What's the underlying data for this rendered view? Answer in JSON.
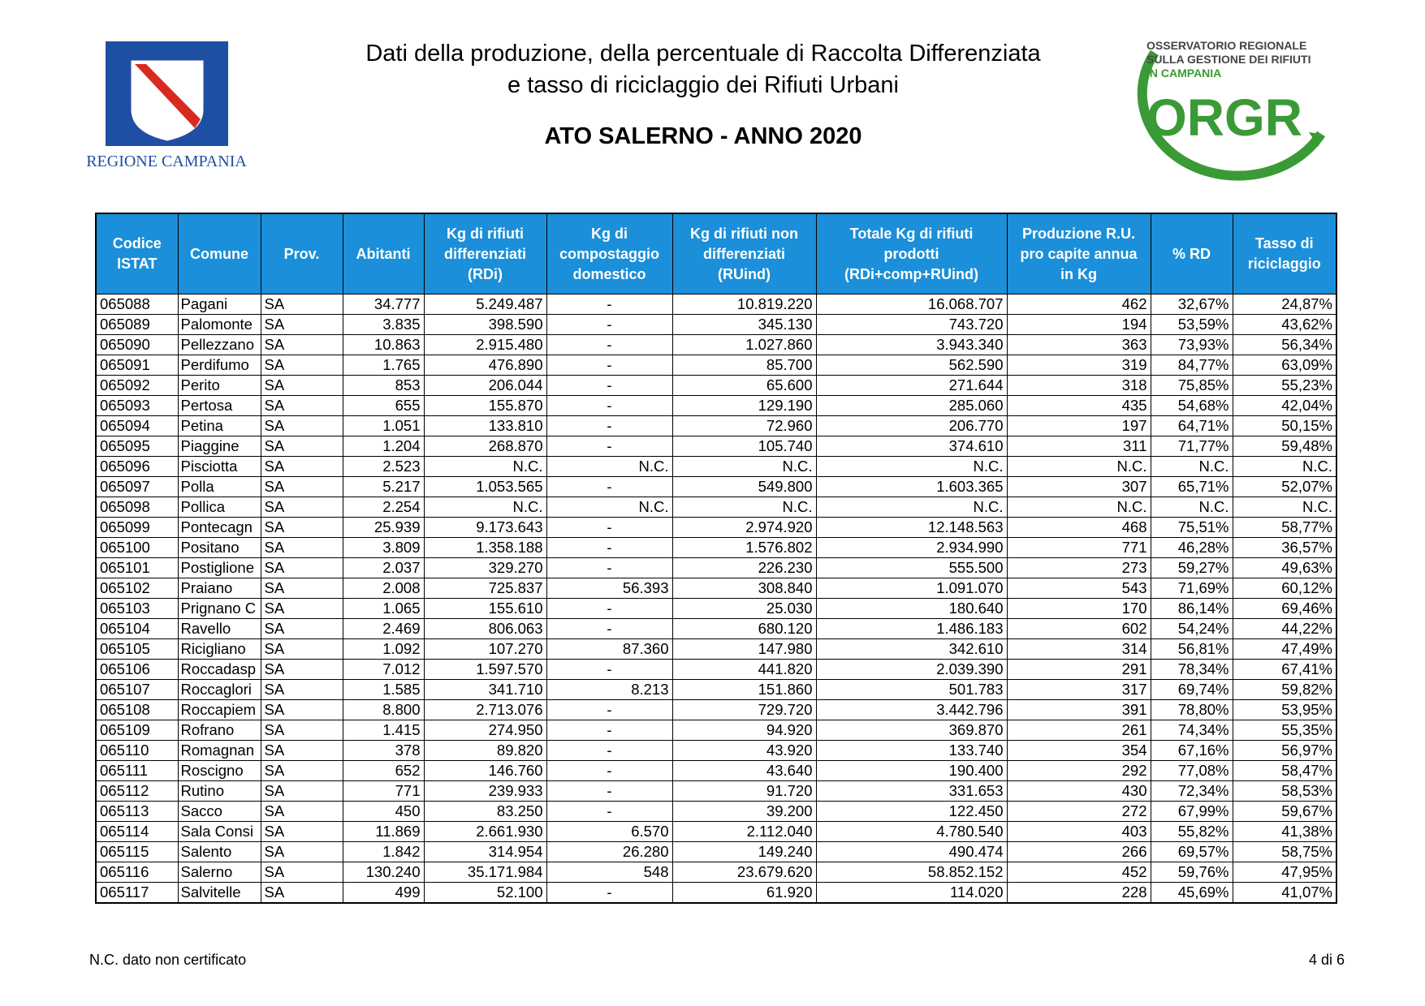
{
  "header": {
    "title_line1": "Dati della produzione, della percentuale di Raccolta Differenziata",
    "title_line2": "e tasso di riciclaggio dei Rifiuti Urbani",
    "subtitle": "ATO SALERNO - ANNO 2020"
  },
  "logo_left": {
    "text": "REGIONE CAMPANIA"
  },
  "logo_right": {
    "line1": "OSSERVATORIO REGIONALE",
    "line2": "SULLA GESTIONE DEI RIFIUTI",
    "line3": "IN CAMPANIA",
    "mark": "ORGR"
  },
  "table": {
    "columns": [
      "Codice\nISTAT",
      "Comune",
      "Prov.",
      "Abitanti",
      "Kg di rifiuti\ndifferenziati\n(RDi)",
      "Kg di\ncompostaggio\ndomestico",
      "Kg di rifiuti non\ndifferenziati\n(RUind)",
      "Totale Kg di rifiuti\nprodotti\n(RDi+comp+RUind)",
      "Produzione R.U.\npro capite annua\nin Kg",
      "% RD",
      "Tasso di\nriciclaggio"
    ],
    "rows": [
      [
        "065088",
        "Pagani",
        "SA",
        "34.777",
        "5.249.487",
        "-",
        "10.819.220",
        "16.068.707",
        "462",
        "32,67%",
        "24,87%"
      ],
      [
        "065089",
        "Palomonte",
        "SA",
        "3.835",
        "398.590",
        "-",
        "345.130",
        "743.720",
        "194",
        "53,59%",
        "43,62%"
      ],
      [
        "065090",
        "Pellezzano",
        "SA",
        "10.863",
        "2.915.480",
        "-",
        "1.027.860",
        "3.943.340",
        "363",
        "73,93%",
        "56,34%"
      ],
      [
        "065091",
        "Perdifumo",
        "SA",
        "1.765",
        "476.890",
        "-",
        "85.700",
        "562.590",
        "319",
        "84,77%",
        "63,09%"
      ],
      [
        "065092",
        "Perito",
        "SA",
        "853",
        "206.044",
        "-",
        "65.600",
        "271.644",
        "318",
        "75,85%",
        "55,23%"
      ],
      [
        "065093",
        "Pertosa",
        "SA",
        "655",
        "155.870",
        "-",
        "129.190",
        "285.060",
        "435",
        "54,68%",
        "42,04%"
      ],
      [
        "065094",
        "Petina",
        "SA",
        "1.051",
        "133.810",
        "-",
        "72.960",
        "206.770",
        "197",
        "64,71%",
        "50,15%"
      ],
      [
        "065095",
        "Piaggine",
        "SA",
        "1.204",
        "268.870",
        "-",
        "105.740",
        "374.610",
        "311",
        "71,77%",
        "59,48%"
      ],
      [
        "065096",
        "Pisciotta",
        "SA",
        "2.523",
        "N.C.",
        "N.C.",
        "N.C.",
        "N.C.",
        "N.C.",
        "N.C.",
        "N.C."
      ],
      [
        "065097",
        "Polla",
        "SA",
        "5.217",
        "1.053.565",
        "-",
        "549.800",
        "1.603.365",
        "307",
        "65,71%",
        "52,07%"
      ],
      [
        "065098",
        "Pollica",
        "SA",
        "2.254",
        "N.C.",
        "N.C.",
        "N.C.",
        "N.C.",
        "N.C.",
        "N.C.",
        "N.C."
      ],
      [
        "065099",
        "Pontecagn",
        "SA",
        "25.939",
        "9.173.643",
        "-",
        "2.974.920",
        "12.148.563",
        "468",
        "75,51%",
        "58,77%"
      ],
      [
        "065100",
        "Positano",
        "SA",
        "3.809",
        "1.358.188",
        "-",
        "1.576.802",
        "2.934.990",
        "771",
        "46,28%",
        "36,57%"
      ],
      [
        "065101",
        "Postiglione",
        "SA",
        "2.037",
        "329.270",
        "-",
        "226.230",
        "555.500",
        "273",
        "59,27%",
        "49,63%"
      ],
      [
        "065102",
        "Praiano",
        "SA",
        "2.008",
        "725.837",
        "56.393",
        "308.840",
        "1.091.070",
        "543",
        "71,69%",
        "60,12%"
      ],
      [
        "065103",
        "Prignano C",
        "SA",
        "1.065",
        "155.610",
        "-",
        "25.030",
        "180.640",
        "170",
        "86,14%",
        "69,46%"
      ],
      [
        "065104",
        "Ravello",
        "SA",
        "2.469",
        "806.063",
        "-",
        "680.120",
        "1.486.183",
        "602",
        "54,24%",
        "44,22%"
      ],
      [
        "065105",
        "Ricigliano",
        "SA",
        "1.092",
        "107.270",
        "87.360",
        "147.980",
        "342.610",
        "314",
        "56,81%",
        "47,49%"
      ],
      [
        "065106",
        "Roccadasp",
        "SA",
        "7.012",
        "1.597.570",
        "-",
        "441.820",
        "2.039.390",
        "291",
        "78,34%",
        "67,41%"
      ],
      [
        "065107",
        "Roccaglori",
        "SA",
        "1.585",
        "341.710",
        "8.213",
        "151.860",
        "501.783",
        "317",
        "69,74%",
        "59,82%"
      ],
      [
        "065108",
        "Roccapiem",
        "SA",
        "8.800",
        "2.713.076",
        "-",
        "729.720",
        "3.442.796",
        "391",
        "78,80%",
        "53,95%"
      ],
      [
        "065109",
        "Rofrano",
        "SA",
        "1.415",
        "274.950",
        "-",
        "94.920",
        "369.870",
        "261",
        "74,34%",
        "55,35%"
      ],
      [
        "065110",
        "Romagnan",
        "SA",
        "378",
        "89.820",
        "-",
        "43.920",
        "133.740",
        "354",
        "67,16%",
        "56,97%"
      ],
      [
        "065111",
        "Roscigno",
        "SA",
        "652",
        "146.760",
        "-",
        "43.640",
        "190.400",
        "292",
        "77,08%",
        "58,47%"
      ],
      [
        "065112",
        "Rutino",
        "SA",
        "771",
        "239.933",
        "-",
        "91.720",
        "331.653",
        "430",
        "72,34%",
        "58,53%"
      ],
      [
        "065113",
        "Sacco",
        "SA",
        "450",
        "83.250",
        "-",
        "39.200",
        "122.450",
        "272",
        "67,99%",
        "59,67%"
      ],
      [
        "065114",
        "Sala Consi",
        "SA",
        "11.869",
        "2.661.930",
        "6.570",
        "2.112.040",
        "4.780.540",
        "403",
        "55,82%",
        "41,38%"
      ],
      [
        "065115",
        "Salento",
        "SA",
        "1.842",
        "314.954",
        "26.280",
        "149.240",
        "490.474",
        "266",
        "69,57%",
        "58,75%"
      ],
      [
        "065116",
        "Salerno",
        "SA",
        "130.240",
        "35.171.984",
        "548",
        "23.679.620",
        "58.852.152",
        "452",
        "59,76%",
        "47,95%"
      ],
      [
        "065117",
        "Salvitelle",
        "SA",
        "499",
        "52.100",
        "-",
        "61.920",
        "114.020",
        "228",
        "45,69%",
        "41,07%"
      ]
    ]
  },
  "footer": {
    "note": "N.C. dato non certificato",
    "page": "4 di 6"
  }
}
